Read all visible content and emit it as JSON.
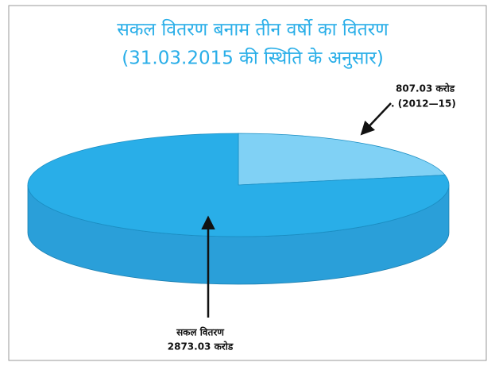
{
  "chart_data": {
    "type": "pie3d",
    "title": "सकल वितरण बनाम तीन वर्षो का वितरण",
    "subtitle": "(31.03.2015 की स्थिति के अनुसार)",
    "categories": [
      "सकल वितरण",
      ". (2012—15)"
    ],
    "values": [
      2873.03,
      807.03
    ],
    "value_labels": [
      "2873.03 करोड",
      "807.03 करोड"
    ],
    "colors": [
      "#29aee8",
      "#80d1f5"
    ]
  }
}
